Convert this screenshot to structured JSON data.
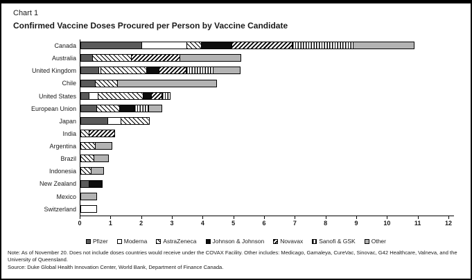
{
  "header": {
    "chart_label": "Chart 1",
    "title": "Confirmed Vaccine Doses Procured per Person by Vaccine Candidate"
  },
  "chart_data": {
    "type": "bar",
    "orientation": "horizontal",
    "stacked": true,
    "title": "Confirmed Vaccine Doses Procured per Person by Vaccine Candidate",
    "xlabel": "",
    "ylabel": "",
    "xlim": [
      0,
      12
    ],
    "x_ticks": [
      0,
      1,
      2,
      3,
      4,
      5,
      6,
      7,
      8,
      9,
      10,
      11,
      12
    ],
    "grid": false,
    "legend_position": "bottom",
    "categories": [
      "Canada",
      "Australia",
      "United Kingdom",
      "Chile",
      "United States",
      "European Union",
      "Japan",
      "India",
      "Argentina",
      "Brazil",
      "Indonesia",
      "New Zealand",
      "Mexico",
      "Switzerland"
    ],
    "series": [
      {
        "name": "Pfizer",
        "key": "pfizer",
        "pattern": "solid-dark-gray",
        "color": "#5a5a5a",
        "values": [
          2.0,
          0.4,
          0.6,
          0.5,
          0.3,
          0.55,
          0.9,
          0,
          0,
          0,
          0,
          0.3,
          0,
          0
        ]
      },
      {
        "name": "Moderna",
        "key": "moderna",
        "pattern": "solid-white",
        "color": "#ffffff",
        "values": [
          1.5,
          0,
          0.1,
          0,
          0.3,
          0,
          0.45,
          0,
          0,
          0,
          0,
          0,
          0,
          0.55
        ]
      },
      {
        "name": "AstraZeneca",
        "key": "astrazeneca",
        "pattern": "backslash-hatch",
        "color": "#000000",
        "values": [
          0.5,
          1.3,
          1.5,
          0.75,
          1.5,
          0.75,
          0.95,
          0.3,
          0.5,
          0.45,
          0.35,
          0,
          0,
          0
        ]
      },
      {
        "name": "Johnson & Johnson",
        "key": "jnj",
        "pattern": "solid-black",
        "color": "#0d0d0d",
        "values": [
          1.0,
          0,
          0.45,
          0,
          0.3,
          0.5,
          0,
          0,
          0,
          0,
          0,
          0.45,
          0,
          0
        ]
      },
      {
        "name": "Novavax",
        "key": "novavax",
        "pattern": "forwardslash-hatch",
        "color": "#000000",
        "values": [
          2.0,
          1.6,
          0.9,
          0,
          0.35,
          0,
          0,
          0.85,
          0,
          0,
          0,
          0,
          0,
          0
        ]
      },
      {
        "name": "Sanofi & GSK",
        "key": "sanofi",
        "pattern": "vertical-line-hatch",
        "color": "#000000",
        "values": [
          2.0,
          0,
          0.9,
          0,
          0.3,
          0.5,
          0,
          0,
          0,
          0,
          0,
          0,
          0,
          0
        ]
      },
      {
        "name": "Other",
        "key": "other",
        "pattern": "solid-light-gray",
        "color": "#b3b3b3",
        "values": [
          2.0,
          2.0,
          0.9,
          3.25,
          0,
          0.45,
          0,
          0,
          0.55,
          0.5,
          0.45,
          0,
          0.55,
          0
        ]
      }
    ],
    "totals_per_category": [
      11.0,
      5.3,
      5.35,
      4.5,
      3.05,
      2.75,
      2.3,
      1.15,
      1.05,
      0.95,
      0.8,
      0.75,
      0.55,
      0.55
    ]
  },
  "legend": {
    "items": [
      {
        "label": "Pfizer",
        "key": "pfizer"
      },
      {
        "label": "Moderna",
        "key": "moderna"
      },
      {
        "label": "AstraZeneca",
        "key": "astrazeneca"
      },
      {
        "label": "Johnson & Johnson",
        "key": "jnj"
      },
      {
        "label": "Novavax",
        "key": "novavax"
      },
      {
        "label": "Sanofi & GSK",
        "key": "sanofi"
      },
      {
        "label": "Other",
        "key": "other"
      }
    ]
  },
  "footnotes": {
    "note": "Note: As of November 20. Does not include doses countries would receive under the COVAX Facility. Other includes: Medicago, Gamaleya, CureVac, Sinovac, G42 Healthcare, Valneva, and the University of Queensland.",
    "source": "Source: Duke Global Health Innovation Center, World Bank, Department of Finance Canada."
  }
}
